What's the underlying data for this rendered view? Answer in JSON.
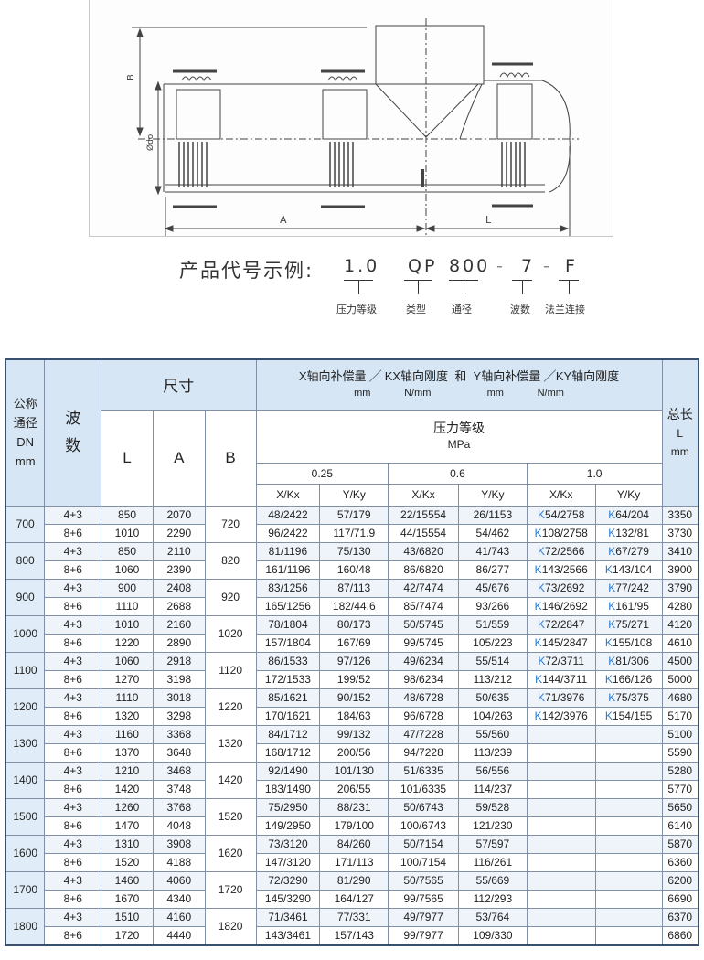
{
  "drawing": {
    "labels": {
      "b": "B",
      "d": "Ødo",
      "a": "A",
      "l": "L"
    }
  },
  "code": {
    "title": "产品代号示例:",
    "segments": [
      "1.0",
      "QP",
      "800",
      "-",
      "7",
      "-",
      "F"
    ],
    "labels": [
      "压力等级",
      "类型",
      "通径",
      "波数",
      "法兰连接"
    ]
  },
  "table": {
    "headers": {
      "dn": [
        "公称",
        "通径",
        "DN",
        "mm"
      ],
      "waves": [
        "波",
        "数"
      ],
      "size": "尺寸",
      "cols": [
        "L",
        "A",
        "B"
      ],
      "stiffness": {
        "x": "X轴向补偿量",
        "kx": "KX轴向刚度",
        "and": "和",
        "y": "Y轴向补偿量",
        "ky": "KY轴向刚度",
        "mm": "mm",
        "nmm": "N/mm"
      },
      "pressure": "压力等级",
      "mpa": "MPa",
      "levels": [
        "0.25",
        "0.6",
        "1.0"
      ],
      "sub": [
        "X/Kx",
        "Y/Ky"
      ],
      "total": [
        "总长",
        "L",
        "mm"
      ]
    },
    "rows": [
      {
        "dn": "700",
        "b": "720",
        "sub": [
          [
            "4+3",
            "850",
            "2070",
            "48/2422",
            "57/179",
            "22/15554",
            "26/1153",
            "K54/2758",
            "K64/204",
            "3350"
          ],
          [
            "8+6",
            "1010",
            "2290",
            "96/2422",
            "117/71.9",
            "44/15554",
            "54/462",
            "K108/2758",
            "K132/81",
            "3730"
          ]
        ]
      },
      {
        "dn": "800",
        "b": "820",
        "sub": [
          [
            "4+3",
            "850",
            "2110",
            "81/1196",
            "75/130",
            "43/6820",
            "41/743",
            "K72/2566",
            "K67/279",
            "3410"
          ],
          [
            "8+6",
            "1060",
            "2390",
            "161/1196",
            "160/48",
            "86/6820",
            "86/277",
            "K143/2566",
            "K143/104",
            "3900"
          ]
        ]
      },
      {
        "dn": "900",
        "b": "920",
        "sub": [
          [
            "4+3",
            "900",
            "2408",
            "83/1256",
            "87/113",
            "42/7474",
            "45/676",
            "K73/2692",
            "K77/242",
            "3790"
          ],
          [
            "8+6",
            "1110",
            "2688",
            "165/1256",
            "182/44.6",
            "85/7474",
            "93/266",
            "K146/2692",
            "K161/95",
            "4280"
          ]
        ]
      },
      {
        "dn": "1000",
        "b": "1020",
        "sub": [
          [
            "4+3",
            "1010",
            "2160",
            "78/1804",
            "80/173",
            "50/5745",
            "51/559",
            "K72/2847",
            "K75/271",
            "4120"
          ],
          [
            "8+6",
            "1220",
            "2890",
            "157/1804",
            "167/69",
            "99/5745",
            "105/223",
            "K145/2847",
            "K155/108",
            "4610"
          ]
        ]
      },
      {
        "dn": "1100",
        "b": "1120",
        "sub": [
          [
            "4+3",
            "1060",
            "2918",
            "86/1533",
            "97/126",
            "49/6234",
            "55/514",
            "K72/3711",
            "K81/306",
            "4500"
          ],
          [
            "8+6",
            "1270",
            "3198",
            "172/1533",
            "199/52",
            "98/6234",
            "113/212",
            "K144/3711",
            "K166/126",
            "5000"
          ]
        ]
      },
      {
        "dn": "1200",
        "b": "1220",
        "sub": [
          [
            "4+3",
            "1110",
            "3018",
            "85/1621",
            "90/152",
            "48/6728",
            "50/635",
            "K71/3976",
            "K75/375",
            "4680"
          ],
          [
            "8+6",
            "1320",
            "3298",
            "170/1621",
            "184/63",
            "96/6728",
            "104/263",
            "K142/3976",
            "K154/155",
            "5170"
          ]
        ]
      },
      {
        "dn": "1300",
        "b": "1320",
        "sub": [
          [
            "4+3",
            "1160",
            "3368",
            "84/1712",
            "99/132",
            "47/7228",
            "55/560",
            "",
            "",
            "5100"
          ],
          [
            "8+6",
            "1370",
            "3648",
            "168/1712",
            "200/56",
            "94/7228",
            "113/239",
            "",
            "",
            "5590"
          ]
        ]
      },
      {
        "dn": "1400",
        "b": "1420",
        "sub": [
          [
            "4+3",
            "1210",
            "3468",
            "92/1490",
            "101/130",
            "51/6335",
            "56/556",
            "",
            "",
            "5280"
          ],
          [
            "8+6",
            "1420",
            "3748",
            "183/1490",
            "206/55",
            "101/6335",
            "114/237",
            "",
            "",
            "5770"
          ]
        ]
      },
      {
        "dn": "1500",
        "b": "1520",
        "sub": [
          [
            "4+3",
            "1260",
            "3768",
            "75/2950",
            "88/231",
            "50/6743",
            "59/528",
            "",
            "",
            "5650"
          ],
          [
            "8+6",
            "1470",
            "4048",
            "149/2950",
            "179/100",
            "100/6743",
            "121/230",
            "",
            "",
            "6140"
          ]
        ]
      },
      {
        "dn": "1600",
        "b": "1620",
        "sub": [
          [
            "4+3",
            "1310",
            "3908",
            "73/3120",
            "84/260",
            "50/7154",
            "57/597",
            "",
            "",
            "5870"
          ],
          [
            "8+6",
            "1520",
            "4188",
            "147/3120",
            "171/113",
            "100/7154",
            "116/261",
            "",
            "",
            "6360"
          ]
        ]
      },
      {
        "dn": "1700",
        "b": "1720",
        "sub": [
          [
            "4+3",
            "1460",
            "4060",
            "72/3290",
            "81/290",
            "50/7565",
            "55/669",
            "",
            "",
            "6200"
          ],
          [
            "8+6",
            "1670",
            "4340",
            "145/3290",
            "164/127",
            "99/7565",
            "112/293",
            "",
            "",
            "6690"
          ]
        ]
      },
      {
        "dn": "1800",
        "b": "1820",
        "sub": [
          [
            "4+3",
            "1510",
            "4160",
            "71/3461",
            "77/331",
            "49/7977",
            "53/764",
            "",
            "",
            "6370"
          ],
          [
            "8+6",
            "1720",
            "4440",
            "143/3461",
            "157/143",
            "99/7977",
            "109/330",
            "",
            "",
            "6860"
          ]
        ]
      }
    ]
  }
}
